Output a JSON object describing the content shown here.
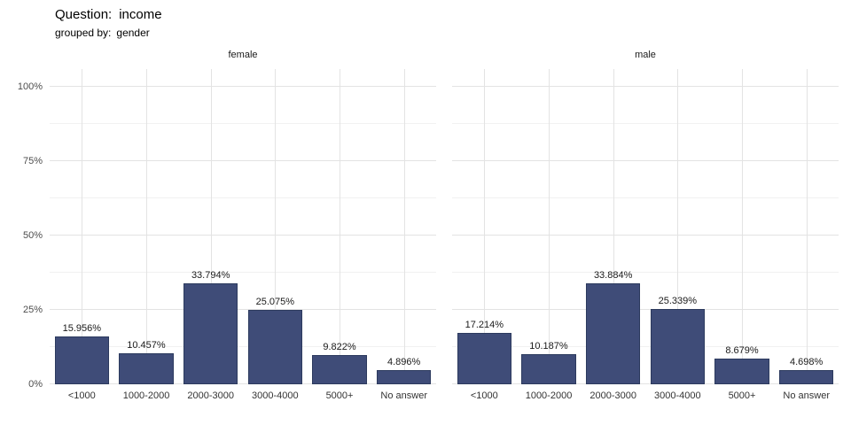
{
  "header": {
    "title_label": "Question:",
    "title_value": "income",
    "subtitle_label": "grouped by:",
    "subtitle_value": "gender"
  },
  "chart_data": {
    "type": "bar",
    "title": "Question: income",
    "subtitle": "grouped by: gender",
    "categories": [
      "<1000",
      "1000-2000",
      "2000-3000",
      "3000-4000",
      "5000+",
      "No answer"
    ],
    "facets": [
      {
        "label": "female",
        "values": [
          15.956,
          10.457,
          33.794,
          25.075,
          9.822,
          4.896
        ],
        "bar_labels": [
          "15.956%",
          "10.457%",
          "33.794%",
          "25.075%",
          "9.822%",
          "4.896%"
        ]
      },
      {
        "label": "male",
        "values": [
          17.214,
          10.187,
          33.884,
          25.339,
          8.679,
          4.698
        ],
        "bar_labels": [
          "17.214%",
          "10.187%",
          "33.884%",
          "25.339%",
          "8.679%",
          "4.698%"
        ]
      }
    ],
    "xlabel": "",
    "ylabel": "",
    "ylim": [
      0,
      100
    ],
    "yticks": [
      0,
      25,
      50,
      75,
      100
    ],
    "ytick_labels": [
      "0%",
      "25%",
      "50%",
      "75%",
      "100%"
    ],
    "bar_color": "#3f4c78",
    "grid": true,
    "legend_position": "none"
  }
}
